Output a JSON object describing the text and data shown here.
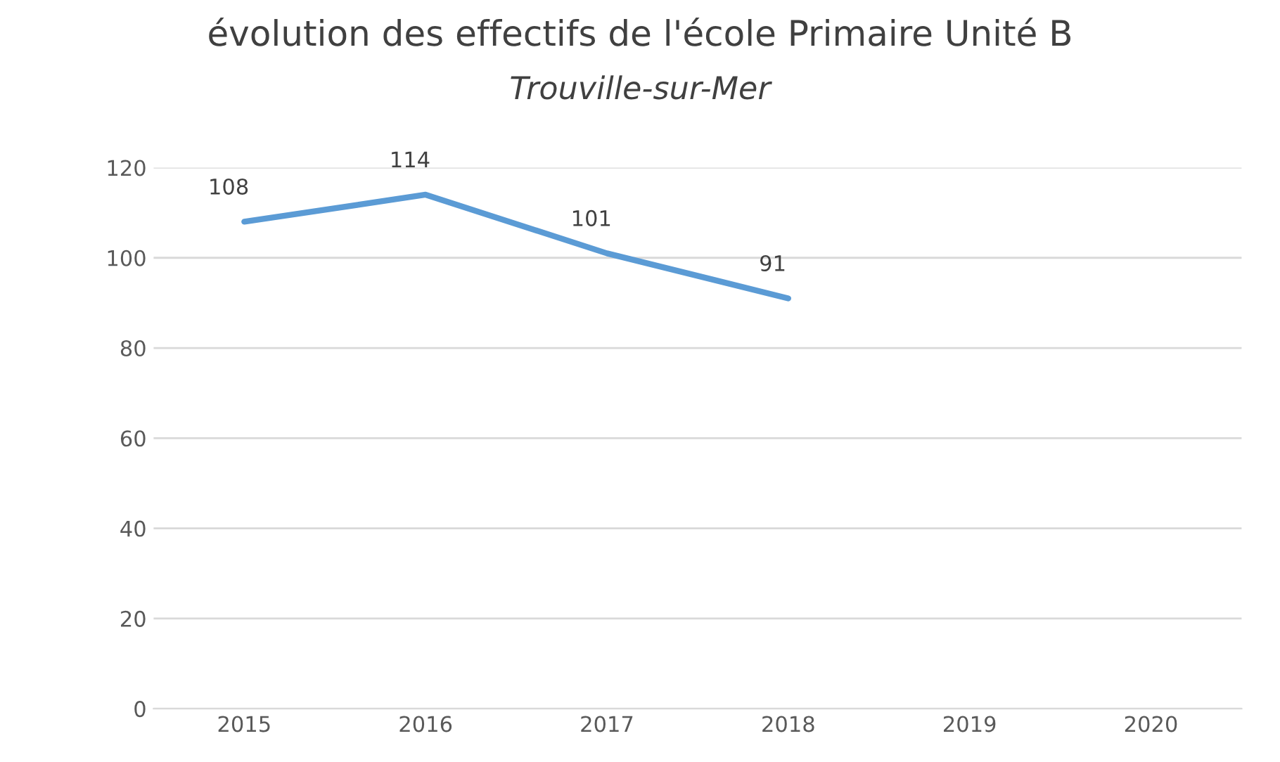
{
  "chart_data": {
    "type": "line",
    "title": "évolution des effectifs de l'école Primaire Unité B",
    "subtitle": "Trouville-sur-Mer",
    "categories": [
      "2015",
      "2016",
      "2017",
      "2018",
      "2019",
      "2020"
    ],
    "series": [
      {
        "color": "#5b9bd5",
        "values": [
          108,
          114,
          101,
          91,
          null,
          null
        ]
      }
    ],
    "ylim": [
      0,
      120
    ],
    "yticks": [
      0,
      20,
      40,
      60,
      80,
      100,
      120
    ],
    "grid": "y",
    "data_labels": true,
    "marker": "none",
    "line_style": "solid",
    "legend": false
  }
}
